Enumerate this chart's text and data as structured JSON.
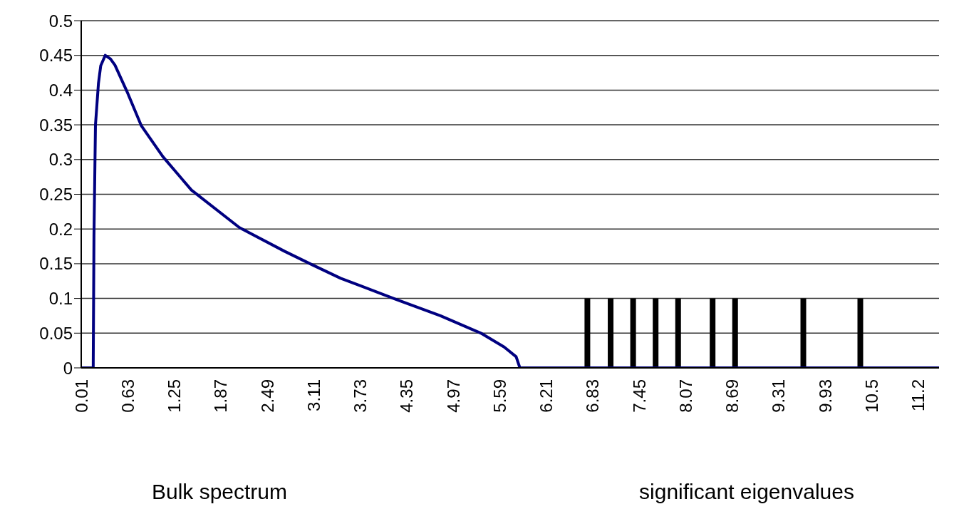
{
  "chart_data": {
    "type": "line",
    "series": [
      {
        "color": "#000080",
        "x": [
          0.01,
          0.17,
          0.18,
          0.19,
          0.2,
          0.22,
          0.24,
          0.27,
          0.33,
          0.4,
          0.46,
          0.62,
          0.81,
          1.1,
          1.48,
          2.12,
          2.72,
          3.08,
          3.47,
          4.2,
          4.8,
          5.34,
          5.65,
          5.81,
          5.86,
          11.45
        ],
        "values": [
          0,
          0,
          0.19,
          0.27,
          0.35,
          0.38,
          0.41,
          0.435,
          0.45,
          0.445,
          0.436,
          0.398,
          0.349,
          0.304,
          0.256,
          0.202,
          0.168,
          0.149,
          0.129,
          0.099,
          0.075,
          0.05,
          0.03,
          0.016,
          0,
          0
        ]
      },
      {
        "type": "bar",
        "color": "#000000",
        "x": [
          6.76,
          7.07,
          7.37,
          7.67,
          7.97,
          8.43,
          8.73,
          9.64,
          10.4
        ],
        "values": [
          0.1,
          0.1,
          0.1,
          0.1,
          0.1,
          0.1,
          0.1,
          0.1,
          0.1
        ]
      }
    ],
    "xlim": [
      0.01,
      11.45
    ],
    "xticks": [
      0.01,
      0.63,
      1.25,
      1.87,
      2.49,
      3.11,
      3.73,
      4.35,
      4.97,
      5.59,
      6.21,
      6.83,
      7.45,
      8.07,
      8.69,
      9.31,
      9.93,
      {
        "value": 10.55,
        "label": "10.5"
      },
      {
        "value": 11.17,
        "label": "11.2"
      }
    ],
    "ylim": [
      0,
      0.5
    ],
    "yticks": [
      0,
      0.05,
      0.1,
      0.15,
      0.2,
      0.25,
      0.3,
      0.35,
      0.4,
      0.45,
      0.5
    ],
    "grid": "y",
    "annotations": [
      "Bulk spectrum",
      "significant eigenvalues"
    ]
  }
}
